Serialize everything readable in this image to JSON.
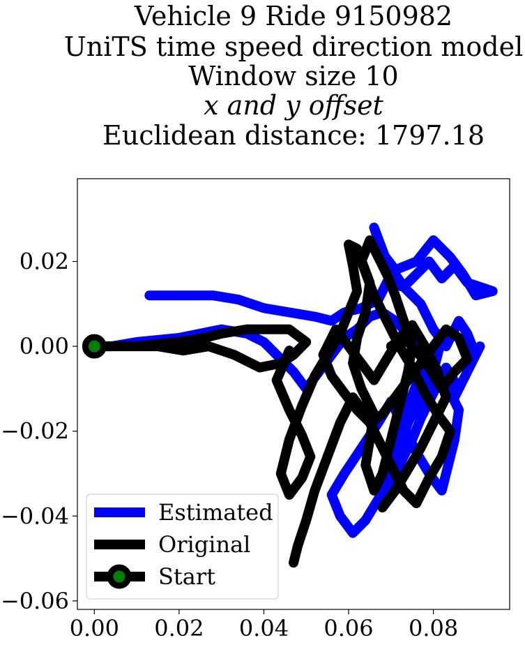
{
  "chart_data": {
    "type": "line",
    "title_lines": [
      "Vehicle 9 Ride 9150982",
      "UniTS time speed direction model",
      "Window size 10",
      "x and y offset",
      "Euclidean distance: 1797.18"
    ],
    "xlabel": "",
    "ylabel": "",
    "xlim": [
      -0.004,
      0.098
    ],
    "ylim": [
      -0.062,
      0.0395
    ],
    "x_ticks": [
      0.0,
      0.02,
      0.04,
      0.06,
      0.08
    ],
    "x_tick_labels": [
      "0.00",
      "0.02",
      "0.04",
      "0.06",
      "0.08"
    ],
    "y_ticks": [
      0.02,
      0.0,
      -0.02,
      -0.04,
      -0.06
    ],
    "y_tick_labels": [
      "0.02",
      "0.00",
      "−0.02",
      "−0.04",
      "−0.06"
    ],
    "grid": false,
    "legend_position": "lower-left",
    "colors": {
      "estimated": "#0000ff",
      "original": "#000000",
      "start_marker_fill": "#008000",
      "start_marker_edge": "#000000"
    },
    "legend": [
      "Estimated",
      "Original",
      "Start"
    ],
    "series": [
      {
        "name": "Estimated",
        "x": [
          0.013,
          0.02,
          0.028,
          0.034,
          0.04,
          0.046,
          0.052,
          0.056,
          0.059,
          0.063,
          0.067,
          0.069,
          0.073,
          0.076,
          0.079,
          0.082,
          0.085,
          0.088,
          0.091,
          0.094,
          0.09,
          0.087,
          0.084,
          0.08,
          0.076,
          0.071,
          0.068,
          0.066,
          0.069,
          0.073,
          0.077,
          0.08,
          0.083,
          0.086,
          0.088,
          0.09,
          0.091,
          0.088,
          0.085,
          0.086,
          0.083,
          0.08,
          0.077,
          0.075,
          0.072,
          0.07,
          0.069,
          0.071,
          0.074,
          0.076,
          0.079,
          0.082,
          0.08,
          0.077,
          0.074,
          0.072,
          0.07,
          0.067,
          0.064,
          0.061,
          0.058,
          0.056,
          0.059,
          0.063,
          0.067,
          0.07,
          0.073,
          0.076,
          0.079,
          0.082,
          0.085,
          0.086,
          0.083,
          0.08,
          0.077,
          0.074,
          0.071,
          0.068,
          0.065,
          0.062,
          0.059,
          0.056,
          0.053,
          0.05,
          0.047,
          0.044,
          0.04,
          0.036,
          0.03,
          0.02,
          0.01,
          0.004,
          0.0
        ],
        "y": [
          0.012,
          0.012,
          0.012,
          0.011,
          0.009,
          0.008,
          0.007,
          0.006,
          0.008,
          0.009,
          0.011,
          0.015,
          0.014,
          0.017,
          0.02,
          0.016,
          0.019,
          0.015,
          0.014,
          0.013,
          0.012,
          0.017,
          0.021,
          0.025,
          0.02,
          0.018,
          0.022,
          0.028,
          0.02,
          0.014,
          0.01,
          0.004,
          0.0,
          0.006,
          0.003,
          -0.002,
          0.0,
          -0.006,
          -0.012,
          -0.01,
          -0.005,
          -0.011,
          -0.017,
          -0.022,
          -0.028,
          -0.033,
          -0.028,
          -0.02,
          -0.014,
          -0.009,
          -0.004,
          0.002,
          -0.006,
          -0.012,
          -0.018,
          -0.024,
          -0.031,
          -0.036,
          -0.041,
          -0.044,
          -0.04,
          -0.035,
          -0.03,
          -0.024,
          -0.018,
          -0.013,
          -0.019,
          -0.025,
          -0.03,
          -0.034,
          -0.022,
          -0.015,
          -0.009,
          -0.004,
          0.0,
          0.003,
          0.006,
          0.008,
          0.007,
          0.004,
          0.002,
          -0.002,
          -0.006,
          -0.01,
          -0.006,
          -0.003,
          0.001,
          0.003,
          0.004,
          0.002,
          0.001,
          0.0,
          0.0
        ]
      },
      {
        "name": "Original",
        "x": [
          0.0,
          0.01,
          0.02,
          0.026,
          0.03,
          0.036,
          0.042,
          0.046,
          0.05,
          0.047,
          0.044,
          0.039,
          0.033,
          0.027,
          0.021,
          0.015,
          0.009,
          0.003,
          0.0
        ],
        "y": [
          0.0,
          0.0,
          0.001,
          0.002,
          0.003,
          0.004,
          0.004,
          0.004,
          0.001,
          -0.002,
          -0.004,
          -0.005,
          -0.002,
          0.0,
          -0.001,
          0.0,
          0.0,
          0.0,
          0.0
        ]
      },
      {
        "name": "Original",
        "x": [
          0.046,
          0.043,
          0.046,
          0.049,
          0.051,
          0.049,
          0.046,
          0.044,
          0.046,
          0.049,
          0.052,
          0.055,
          0.058,
          0.06,
          0.062,
          0.061,
          0.06,
          0.062,
          0.065,
          0.064,
          0.062,
          0.061,
          0.063,
          0.066,
          0.065,
          0.064,
          0.066,
          0.068,
          0.07,
          0.072,
          0.074,
          0.075,
          0.073,
          0.071,
          0.069,
          0.067,
          0.065,
          0.063,
          0.066,
          0.069,
          0.072,
          0.075,
          0.078,
          0.081,
          0.084,
          0.082,
          0.079,
          0.076,
          0.073,
          0.07,
          0.067,
          0.064,
          0.061,
          0.058,
          0.055,
          0.052,
          0.05,
          0.048,
          0.047
        ],
        "y": [
          -0.001,
          -0.008,
          -0.015,
          -0.021,
          -0.026,
          -0.031,
          -0.035,
          -0.03,
          -0.022,
          -0.014,
          -0.007,
          -0.002,
          0.003,
          0.008,
          0.013,
          0.019,
          0.024,
          0.023,
          0.015,
          0.008,
          0.002,
          -0.004,
          -0.01,
          -0.016,
          -0.022,
          -0.028,
          -0.034,
          -0.03,
          -0.022,
          -0.014,
          -0.006,
          0.0,
          0.006,
          0.012,
          0.017,
          0.021,
          0.025,
          0.02,
          0.012,
          0.006,
          0.0,
          -0.005,
          -0.011,
          -0.016,
          -0.02,
          -0.026,
          -0.031,
          -0.037,
          -0.034,
          -0.028,
          -0.022,
          -0.016,
          -0.012,
          -0.018,
          -0.026,
          -0.034,
          -0.041,
          -0.047,
          -0.051
        ]
      },
      {
        "name": "Original",
        "x": [
          0.068,
          0.071,
          0.074,
          0.077,
          0.08,
          0.083,
          0.081,
          0.078,
          0.075,
          0.072,
          0.069,
          0.066,
          0.063,
          0.06,
          0.057,
          0.054,
          0.056,
          0.059,
          0.062,
          0.065,
          0.068,
          0.071,
          0.074,
          0.077,
          0.08,
          0.083,
          0.086,
          0.088,
          0.085,
          0.082,
          0.079,
          0.076,
          0.073,
          0.07
        ],
        "y": [
          -0.038,
          -0.034,
          -0.029,
          -0.024,
          -0.018,
          -0.012,
          -0.006,
          0.0,
          0.005,
          0.002,
          -0.003,
          -0.008,
          -0.004,
          0.0,
          0.004,
          -0.002,
          -0.007,
          -0.011,
          -0.015,
          -0.018,
          -0.016,
          -0.012,
          -0.008,
          -0.004,
          0.0,
          0.004,
          0.002,
          -0.003,
          -0.006,
          -0.01,
          -0.005,
          -0.001,
          0.002,
          0.0
        ]
      }
    ],
    "start_point": {
      "name": "Start",
      "x": 0.0,
      "y": 0.0
    }
  }
}
